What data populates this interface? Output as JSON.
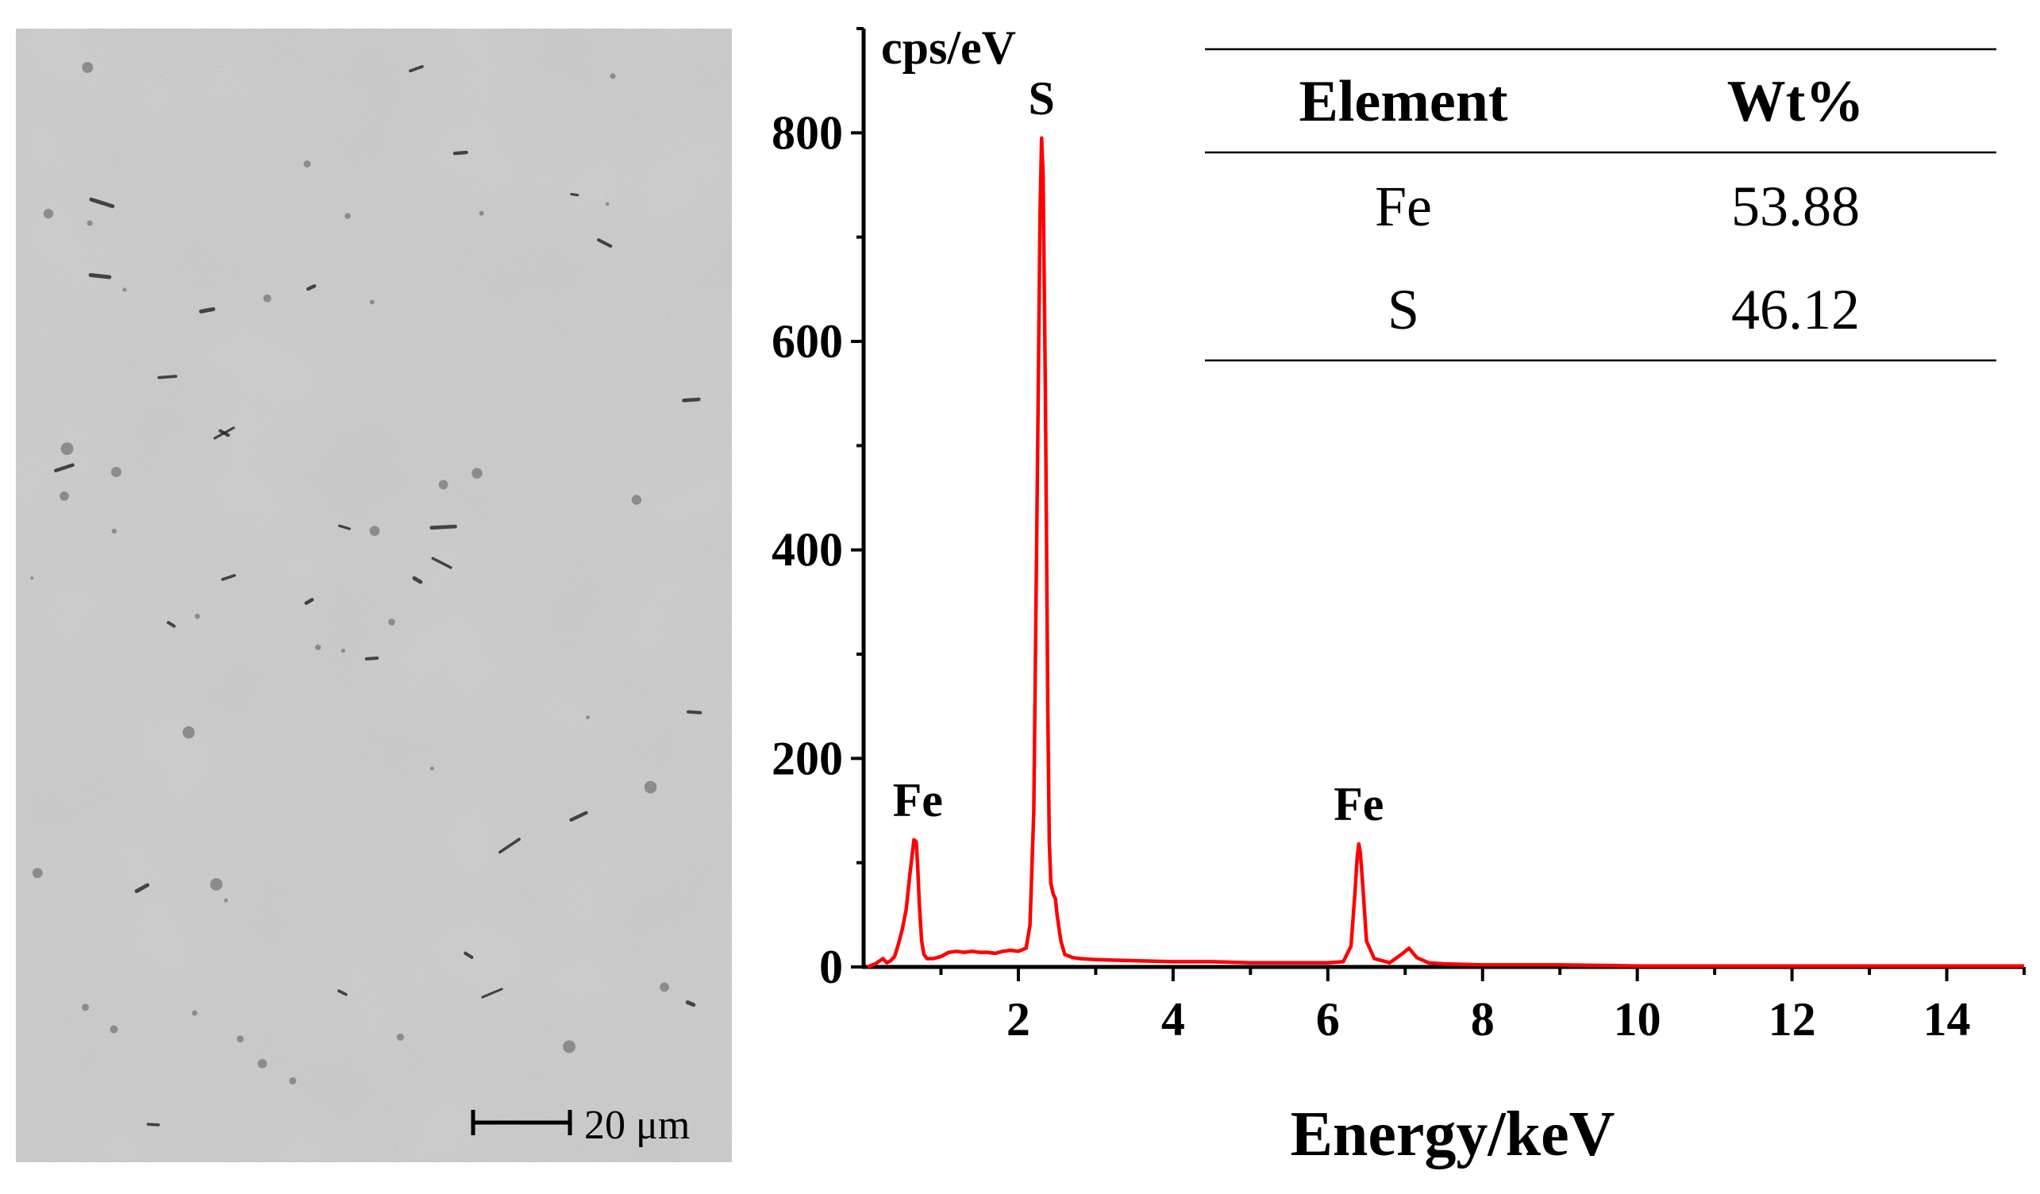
{
  "sem_image": {
    "alt": "SEM micrograph of sample surface",
    "scale_bar_label": "20 μm"
  },
  "chart_data": {
    "type": "line",
    "title": "",
    "xlabel": "Energy/keV",
    "ylabel": "cps/eV",
    "xlim": [
      0,
      15
    ],
    "ylim": [
      0,
      900
    ],
    "xticks": [
      2,
      4,
      6,
      8,
      10,
      12,
      14
    ],
    "yticks": [
      0,
      200,
      400,
      600,
      800
    ],
    "grid": false,
    "series": [
      {
        "name": "EDS spectrum",
        "color": "#ff0000",
        "x": [
          0.05,
          0.15,
          0.25,
          0.3,
          0.35,
          0.4,
          0.45,
          0.5,
          0.55,
          0.6,
          0.65,
          0.68,
          0.7,
          0.72,
          0.75,
          0.78,
          0.82,
          0.9,
          1.0,
          1.1,
          1.2,
          1.3,
          1.4,
          1.5,
          1.6,
          1.7,
          1.8,
          1.9,
          2.0,
          2.1,
          2.15,
          2.2,
          2.25,
          2.28,
          2.3,
          2.32,
          2.35,
          2.38,
          2.4,
          2.42,
          2.45,
          2.48,
          2.5,
          2.55,
          2.6,
          2.7,
          2.8,
          3.0,
          3.5,
          4.0,
          4.5,
          5.0,
          5.5,
          6.0,
          6.2,
          6.3,
          6.35,
          6.38,
          6.4,
          6.42,
          6.45,
          6.5,
          6.6,
          6.8,
          6.95,
          7.05,
          7.15,
          7.3,
          7.5,
          8.0,
          9.0,
          10.0,
          11.0,
          12.0,
          13.0,
          14.0,
          15.0
        ],
        "values": [
          0,
          3,
          8,
          4,
          6,
          10,
          22,
          36,
          55,
          90,
          122,
          120,
          95,
          60,
          25,
          12,
          8,
          8,
          10,
          14,
          15,
          14,
          15,
          14,
          14,
          13,
          15,
          16,
          15,
          18,
          40,
          150,
          500,
          720,
          795,
          760,
          550,
          250,
          120,
          80,
          70,
          65,
          50,
          25,
          12,
          9,
          8,
          7,
          6,
          5,
          5,
          4,
          4,
          4,
          5,
          20,
          70,
          105,
          118,
          110,
          80,
          25,
          8,
          4,
          12,
          18,
          9,
          4,
          3,
          2,
          2,
          1,
          1,
          1,
          1,
          1,
          1
        ]
      }
    ],
    "annotations": [
      {
        "text": "Fe",
        "x": 0.7,
        "y": 122
      },
      {
        "text": "S",
        "x": 2.3,
        "y": 795
      },
      {
        "text": "Fe",
        "x": 6.4,
        "y": 118
      }
    ]
  },
  "composition_table": {
    "headers": [
      "Element",
      "Wt%"
    ],
    "rows": [
      [
        "Fe",
        "53.88"
      ],
      [
        "S",
        "46.12"
      ]
    ]
  }
}
